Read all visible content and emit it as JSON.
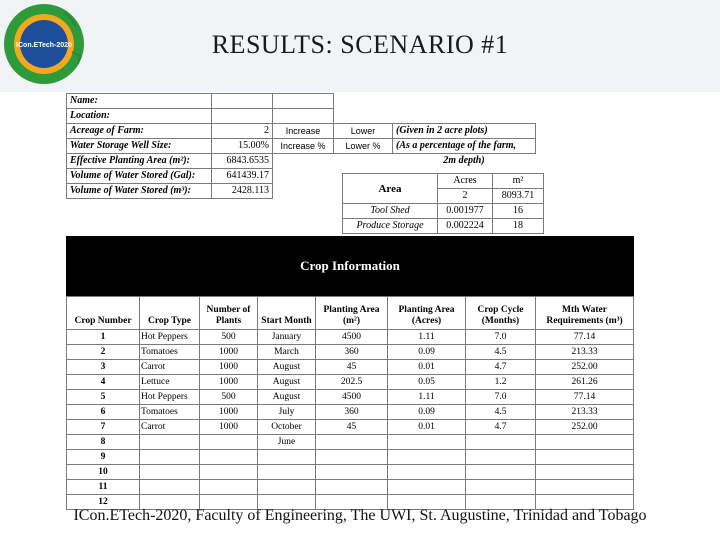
{
  "slide": {
    "title": "RESULTS: SCENARIO #1",
    "footer": "ICon.ETech-2020, Faculty of Engineering, The UWI, St. Augustine, Trinidad and Tobago",
    "logo_text": "ICon.ETech-2020"
  },
  "farm_inputs": {
    "name_label": "Name:",
    "location_label": "Location:",
    "acreage_label": "Acreage of Farm:",
    "acreage_value": "2",
    "acreage_increase": "Increase",
    "acreage_lower": "Lower",
    "acreage_note": "(Given in 2 acre plots)",
    "well_label": "Water Storage Well Size:",
    "well_value": "15.00%",
    "well_increase": "Increase %",
    "well_lower": "Lower %",
    "well_note": "(As a percentage of the farm,",
    "epa_label": "Effective Planting Area (m²):",
    "epa_value": "6843.6535",
    "epa_note": "2m depth)",
    "vol_gal_label": "Volume of Water Stored (Gal):",
    "vol_gal_value": "641439.17",
    "vol_m3_label": "Volume of Water Stored (m³):",
    "vol_m3_value": "2428.113"
  },
  "area_table": {
    "header": "Area",
    "col_acres": "Acres",
    "col_m2": "m²",
    "total_acres": "2",
    "total_m2": "8093.71",
    "rows": [
      {
        "label": "Tool Shed",
        "acres": "0.001977",
        "m2": "16"
      },
      {
        "label": "Produce Storage",
        "acres": "0.002224",
        "m2": "18"
      }
    ]
  },
  "crop_info": {
    "title": "Crop Information",
    "headers": [
      "Crop Number",
      "Crop Type",
      "Number of Plants",
      "Start Month",
      "Planting Area (m²)",
      "Planting Area (Acres)",
      "Crop Cycle (Months)",
      "Mth Water Requirements (m³)"
    ],
    "rows": [
      [
        "1",
        "Hot Peppers",
        "500",
        "January",
        "4500",
        "1.11",
        "7.0",
        "77.14"
      ],
      [
        "2",
        "Tomatoes",
        "1000",
        "March",
        "360",
        "0.09",
        "4.5",
        "213.33"
      ],
      [
        "3",
        "Carrot",
        "1000",
        "August",
        "45",
        "0.01",
        "4.7",
        "252.00"
      ],
      [
        "4",
        "Lettuce",
        "1000",
        "August",
        "202.5",
        "0.05",
        "1.2",
        "261.26"
      ],
      [
        "5",
        "Hot Peppers",
        "500",
        "August",
        "4500",
        "1.11",
        "7.0",
        "77.14"
      ],
      [
        "6",
        "Tomatoes",
        "1000",
        "July",
        "360",
        "0.09",
        "4.5",
        "213.33"
      ],
      [
        "7",
        "Carrot",
        "1000",
        "October",
        "45",
        "0.01",
        "4.7",
        "252.00"
      ],
      [
        "8",
        "",
        "",
        "June",
        "",
        "",
        "",
        ""
      ],
      [
        "9",
        "",
        "",
        "",
        "",
        "",
        "",
        ""
      ],
      [
        "10",
        "",
        "",
        "",
        "",
        "",
        "",
        ""
      ],
      [
        "11",
        "",
        "",
        "",
        "",
        "",
        "",
        ""
      ],
      [
        "12",
        "",
        "",
        "",
        "",
        "",
        "",
        ""
      ]
    ]
  }
}
